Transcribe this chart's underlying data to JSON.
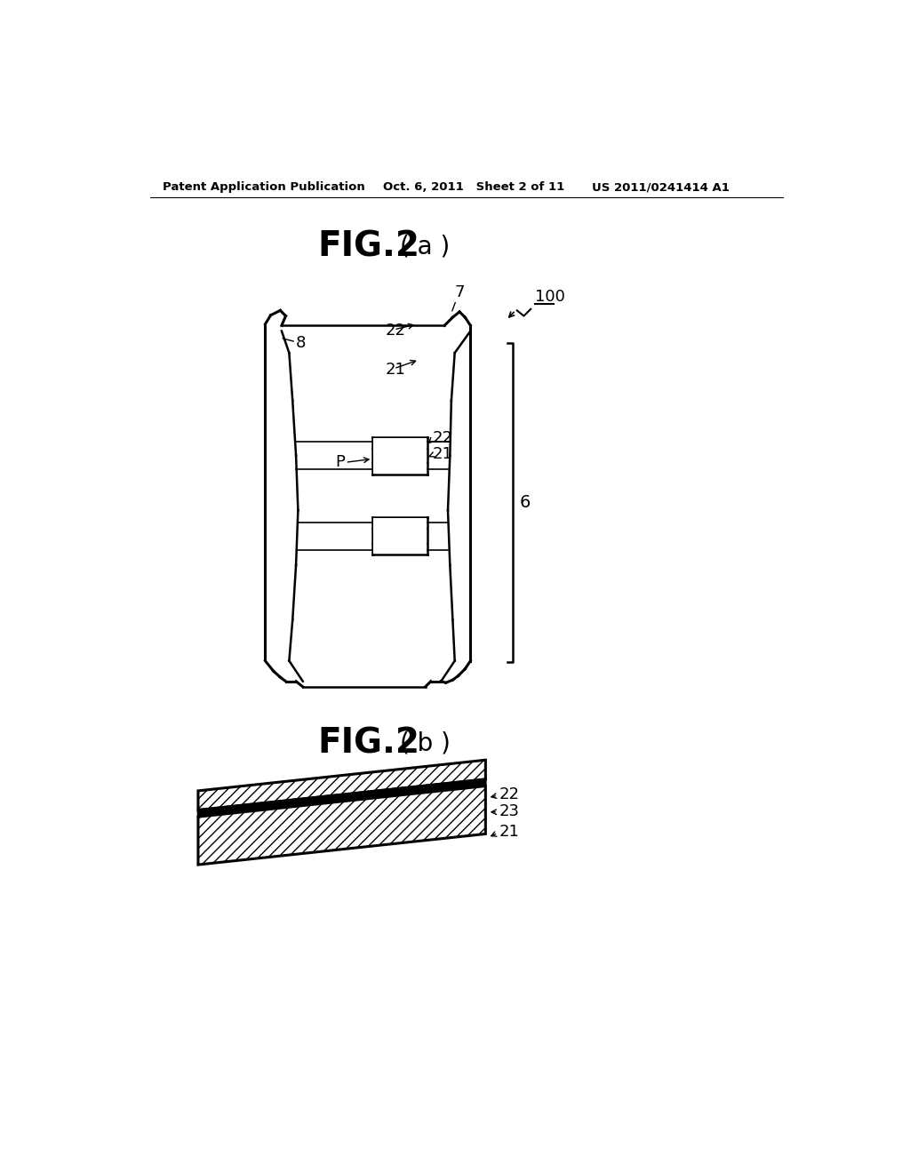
{
  "bg_color": "#ffffff",
  "header_left": "Patent Application Publication",
  "header_mid": "Oct. 6, 2011   Sheet 2 of 11",
  "header_right": "US 2011/0241414 A1",
  "fig2a_title": "FIG.2",
  "fig2a_sub": "( a )",
  "fig2b_title": "FIG.2",
  "fig2b_sub": "( b )",
  "label_100": "100",
  "label_7": "7",
  "label_8": "8",
  "label_22a": "22",
  "label_21a": "21",
  "label_22b": "22",
  "label_21b": "21",
  "label_P": "P",
  "label_6": "6",
  "label_22c": "22",
  "label_23": "23",
  "label_21c": "21"
}
